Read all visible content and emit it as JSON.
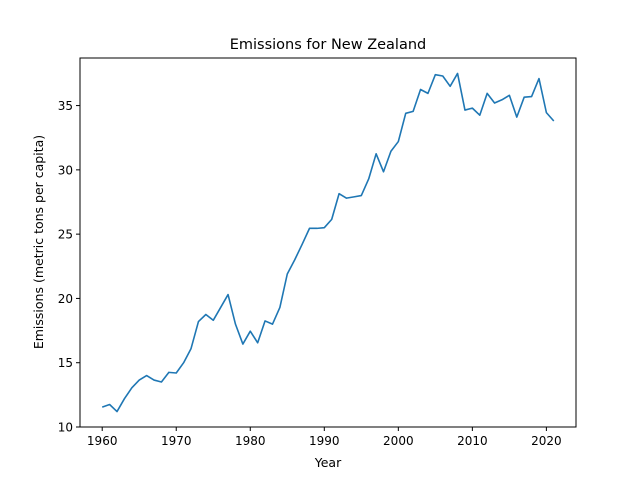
{
  "chart_data": {
    "type": "line",
    "title": "Emissions for New Zealand",
    "xlabel": "Year",
    "ylabel": "Emissions (metric tons per capita)",
    "xlim": [
      1957,
      2024
    ],
    "ylim": [
      10,
      38.7
    ],
    "xticks": [
      1960,
      1970,
      1980,
      1990,
      2000,
      2010,
      2020
    ],
    "yticks": [
      10,
      15,
      20,
      25,
      30,
      35
    ],
    "grid": false,
    "line_color": "#1f77b4",
    "x": [
      1960,
      1961,
      1962,
      1963,
      1964,
      1965,
      1966,
      1967,
      1968,
      1969,
      1970,
      1971,
      1972,
      1973,
      1974,
      1975,
      1976,
      1977,
      1978,
      1979,
      1980,
      1981,
      1982,
      1983,
      1984,
      1985,
      1986,
      1987,
      1988,
      1989,
      1990,
      1991,
      1992,
      1993,
      1994,
      1995,
      1996,
      1997,
      1998,
      1999,
      2000,
      2001,
      2002,
      2003,
      2004,
      2005,
      2006,
      2007,
      2008,
      2009,
      2010,
      2011,
      2012,
      2013,
      2014,
      2015,
      2016,
      2017,
      2018,
      2019,
      2020,
      2021
    ],
    "y": [
      11.55,
      11.75,
      11.2,
      12.2,
      13.05,
      13.65,
      14.0,
      13.65,
      13.5,
      14.25,
      14.2,
      15.0,
      16.1,
      18.2,
      18.75,
      18.3,
      19.3,
      20.3,
      18.0,
      16.45,
      17.45,
      16.55,
      18.25,
      18.0,
      19.3,
      21.9,
      23.0,
      24.2,
      25.45,
      25.45,
      25.5,
      26.15,
      28.15,
      27.8,
      27.9,
      28.0,
      29.3,
      31.25,
      29.85,
      31.45,
      32.2,
      34.4,
      34.55,
      36.25,
      35.95,
      37.4,
      37.3,
      36.5,
      37.5,
      34.65,
      34.8,
      34.25,
      35.95,
      35.2,
      35.45,
      35.8,
      34.1,
      35.65,
      35.7,
      37.1,
      34.45,
      33.8
    ]
  }
}
